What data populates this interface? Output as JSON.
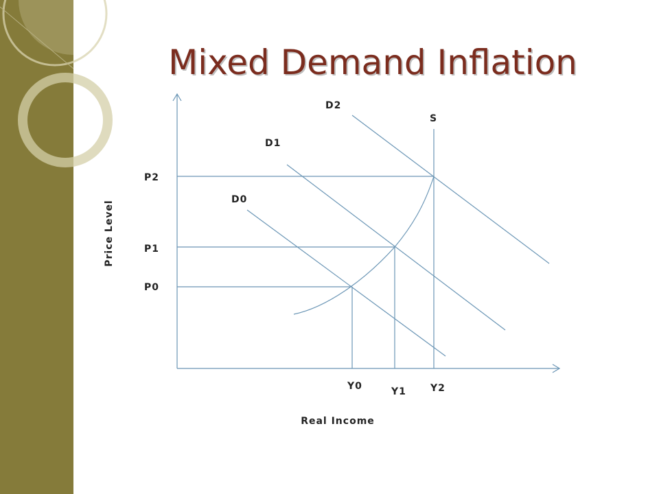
{
  "title": "Mixed Demand Inflation",
  "axes": {
    "y_label": "Price Level",
    "x_label": "Real Income"
  },
  "curves": {
    "demand": [
      "D0",
      "D1",
      "D2"
    ],
    "supply": "S"
  },
  "price_levels": [
    "P0",
    "P1",
    "P2"
  ],
  "income_levels": [
    "Y0",
    "Y1",
    "Y2"
  ]
}
